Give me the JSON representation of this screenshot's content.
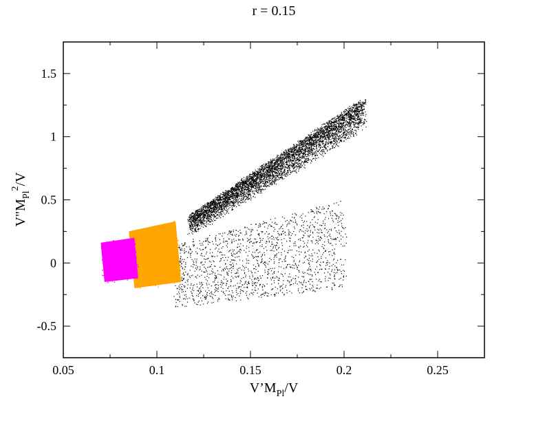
{
  "chart_data": {
    "type": "scatter",
    "title": "r = 0.15",
    "xlabel": {
      "main1": "V’M",
      "sub": "Pl",
      "main2": "/V"
    },
    "ylabel": {
      "main1": "V\"M",
      "sub": "Pl",
      "sup": "2",
      "main2": "/V"
    },
    "xlim": [
      0.05,
      0.275
    ],
    "ylim": [
      -0.75,
      1.75
    ],
    "x_ticks": [
      0.05,
      0.1,
      0.15,
      0.2,
      0.25
    ],
    "x_tick_labels": [
      "0.05",
      "0.1",
      "0.15",
      "0.2",
      "0.25"
    ],
    "y_ticks": [
      -0.5,
      0,
      0.5,
      1,
      1.5
    ],
    "y_tick_labels": [
      "-0.5",
      "0",
      "0.5",
      "1",
      "1.5"
    ],
    "grid": false,
    "legend": "none",
    "series": [
      {
        "color": "#000000",
        "marker": "dot",
        "regions": [
          {
            "shape": "band",
            "x": [
              0.118,
              0.21
            ],
            "y_low": [
              0.22,
              1.05
            ],
            "y_high": [
              0.38,
              1.3
            ],
            "density": "dense"
          },
          {
            "shape": "band",
            "x": [
              0.11,
              0.2
            ],
            "y_low": [
              -0.35,
              -0.2
            ],
            "y_high": [
              0.15,
              0.5
            ],
            "density": "sparse"
          }
        ]
      },
      {
        "color": "#FFA500",
        "marker": "square-dot",
        "regions": [
          {
            "shape": "quad",
            "corners": [
              [
                0.085,
                0.25
              ],
              [
                0.11,
                0.33
              ],
              [
                0.113,
                -0.15
              ],
              [
                0.088,
                -0.2
              ]
            ],
            "density": "solid"
          }
        ]
      },
      {
        "color": "#FF00FF",
        "marker": "square-dot",
        "regions": [
          {
            "shape": "quad",
            "corners": [
              [
                0.07,
                0.16
              ],
              [
                0.088,
                0.2
              ],
              [
                0.09,
                -0.12
              ],
              [
                0.072,
                -0.15
              ]
            ],
            "density": "solid"
          }
        ]
      }
    ]
  }
}
